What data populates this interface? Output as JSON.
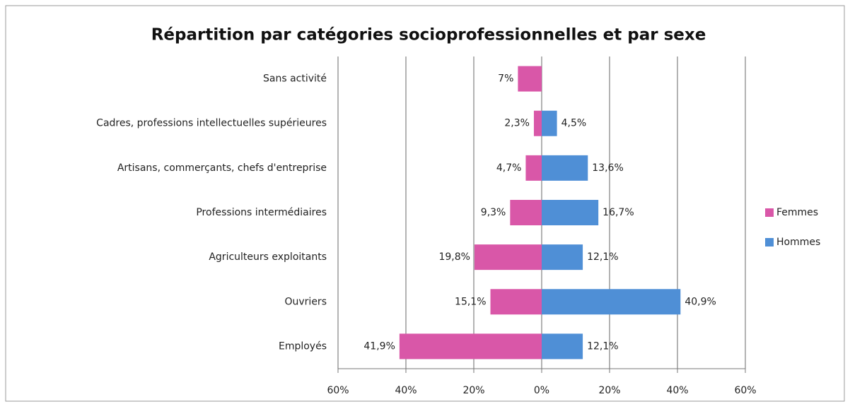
{
  "chart_data": {
    "type": "butterfly_bar",
    "title": "Répartition par catégories socioprofessionnelles et par sexe",
    "categories": [
      "Sans activité",
      "Cadres, professions intellectuelles supérieures",
      "Artisans, commerçants, chefs d'entreprise",
      "Professions intermédiaires",
      "Agriculteurs exploitants",
      "Ouvriers",
      "Employés"
    ],
    "series": [
      {
        "name": "Femmes",
        "color": "#d957a8",
        "values": [
          -7,
          -2.3,
          -4.7,
          -9.3,
          -19.8,
          -15.1,
          -41.9
        ],
        "value_labels": [
          "7%",
          "2,3%",
          "4,7%",
          "9,3%",
          "19,8%",
          "15,1%",
          "41,9%"
        ]
      },
      {
        "name": "Hommes",
        "color": "#4f8fd6",
        "values": [
          null,
          4.5,
          13.6,
          16.7,
          12.1,
          40.9,
          12.1
        ],
        "value_labels": [
          null,
          "4,5%",
          "13,6%",
          "16,7%",
          "12,1%",
          "40,9%",
          "12,1%"
        ]
      }
    ],
    "xlim": [
      -60,
      60
    ],
    "xticks": [
      {
        "value": -60,
        "label": "60%"
      },
      {
        "value": -40,
        "label": "40%"
      },
      {
        "value": -20,
        "label": "20%"
      },
      {
        "value": 0,
        "label": "0%"
      },
      {
        "value": 20,
        "label": "20%"
      },
      {
        "value": 40,
        "label": "40%"
      },
      {
        "value": 60,
        "label": "60%"
      }
    ],
    "grid": true,
    "legend": "right"
  }
}
